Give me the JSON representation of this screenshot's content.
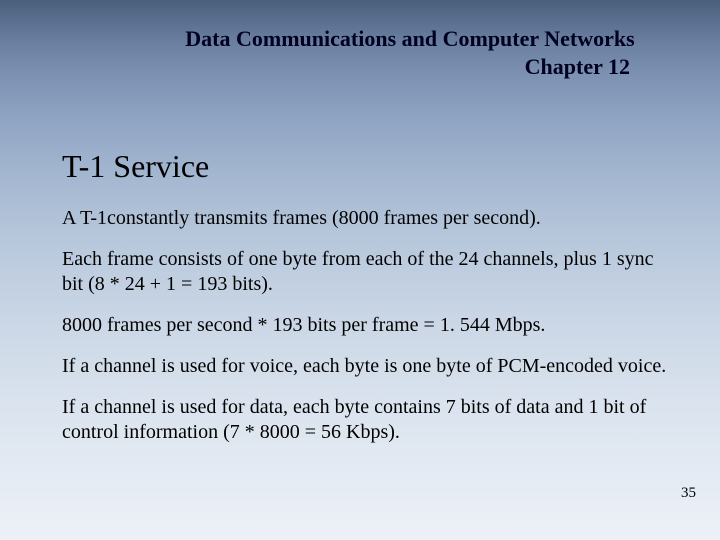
{
  "header": {
    "title": "Data Communications and Computer Networks",
    "chapter": "Chapter 12"
  },
  "section_title": "T-1 Service",
  "paragraphs": [
    "A T-1constantly transmits frames (8000 frames per second).",
    "Each frame consists of one byte from each of the 24 channels, plus 1 sync bit (8 * 24 + 1 = 193 bits).",
    "8000 frames per second * 193 bits per frame = 1. 544 Mbps.",
    "If a channel is used for voice, each byte is one byte of PCM-encoded voice.",
    "If a channel is used for data, each byte contains 7 bits of data and 1 bit of control information (7 * 8000 = 56 Kbps)."
  ],
  "page_number": "35",
  "style": {
    "background_gradient_top": "#4a5f7a",
    "background_gradient_bottom": "#edf1f7",
    "title_color": "#000020",
    "text_color": "#000000",
    "header_fontsize": 22,
    "section_fontsize": 32,
    "body_fontsize": 20,
    "pagenum_fontsize": 15,
    "font_family": "Times New Roman"
  }
}
